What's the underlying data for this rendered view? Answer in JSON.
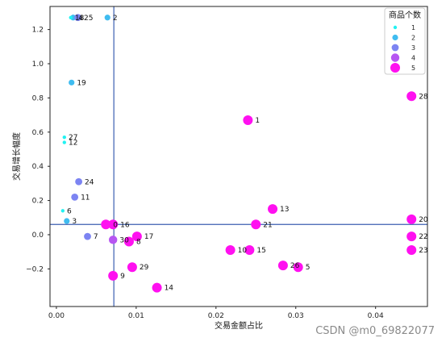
{
  "chart_data": {
    "type": "scatter",
    "title": "",
    "xlabel": "交易金额占比",
    "ylabel": "交易增长幅度",
    "xlim": [
      -0.0008,
      0.0465
    ],
    "ylim": [
      -0.42,
      1.335
    ],
    "xticks": [
      0.0,
      0.01,
      0.02,
      0.03,
      0.04
    ],
    "xtick_labels": [
      "0.00",
      "0.01",
      "0.02",
      "0.03",
      "0.04"
    ],
    "yticks": [
      -0.2,
      0.0,
      0.2,
      0.4,
      0.6,
      0.8,
      1.0,
      1.2
    ],
    "ytick_labels": [
      "−0.2",
      "0.0",
      "0.2",
      "0.4",
      "0.6",
      "0.8",
      "1.0",
      "1.2"
    ],
    "reference_lines": {
      "x": 0.0072,
      "y": 0.06
    },
    "legend": {
      "title": "商品个数",
      "placement": "top-right",
      "entries": [
        {
          "label": "1",
          "size": 1
        },
        {
          "label": "2",
          "size": 2
        },
        {
          "label": "3",
          "size": 3
        },
        {
          "label": "4",
          "size": 4
        },
        {
          "label": "5",
          "size": 5
        }
      ]
    },
    "points": [
      {
        "label": "1",
        "x": 0.024,
        "y": 0.67,
        "size": 5
      },
      {
        "label": "2",
        "x": 0.0064,
        "y": 1.27,
        "size": 2
      },
      {
        "label": "3",
        "x": 0.0013,
        "y": 0.08,
        "size": 2
      },
      {
        "label": "4",
        "x": 0.0021,
        "y": 1.27,
        "size": 2
      },
      {
        "label": "5",
        "x": 0.0303,
        "y": -0.19,
        "size": 5
      },
      {
        "label": "6",
        "x": 0.0008,
        "y": 0.14,
        "size": 1
      },
      {
        "label": "7",
        "x": 0.0039,
        "y": -0.01,
        "size": 3
      },
      {
        "label": "8",
        "x": 0.0091,
        "y": -0.04,
        "size": 5
      },
      {
        "label": "9",
        "x": 0.0071,
        "y": -0.24,
        "size": 5
      },
      {
        "label": "10",
        "x": 0.0218,
        "y": -0.09,
        "size": 5
      },
      {
        "label": "11",
        "x": 0.0023,
        "y": 0.22,
        "size": 3
      },
      {
        "label": "12",
        "x": 0.001,
        "y": 0.54,
        "size": 1
      },
      {
        "label": "13",
        "x": 0.0271,
        "y": 0.15,
        "size": 5
      },
      {
        "label": "14",
        "x": 0.0126,
        "y": -0.31,
        "size": 5
      },
      {
        "label": "15",
        "x": 0.0242,
        "y": -0.09,
        "size": 5
      },
      {
        "label": "16",
        "x": 0.0071,
        "y": 0.06,
        "size": 5
      },
      {
        "label": "17",
        "x": 0.0101,
        "y": -0.01,
        "size": 5
      },
      {
        "label": "18",
        "x": 0.0018,
        "y": 1.27,
        "size": 1
      },
      {
        "label": "19",
        "x": 0.0019,
        "y": 0.89,
        "size": 2
      },
      {
        "label": "20",
        "x": 0.0445,
        "y": 0.09,
        "size": 5
      },
      {
        "label": "21",
        "x": 0.025,
        "y": 0.06,
        "size": 5
      },
      {
        "label": "22",
        "x": 0.0445,
        "y": -0.01,
        "size": 5
      },
      {
        "label": "23",
        "x": 0.0445,
        "y": -0.09,
        "size": 5
      },
      {
        "label": "24",
        "x": 0.0028,
        "y": 0.31,
        "size": 3
      },
      {
        "label": "25",
        "x": 0.0027,
        "y": 1.27,
        "size": 3
      },
      {
        "label": "26",
        "x": 0.0284,
        "y": -0.18,
        "size": 5
      },
      {
        "label": "27",
        "x": 0.001,
        "y": 0.57,
        "size": 1
      },
      {
        "label": "28",
        "x": 0.0445,
        "y": 0.81,
        "size": 5
      },
      {
        "label": "29",
        "x": 0.0095,
        "y": -0.19,
        "size": 5
      },
      {
        "label": "30",
        "x": 0.0071,
        "y": -0.03,
        "size": 4
      },
      {
        "label": "0",
        "x": 0.0062,
        "y": 0.06,
        "size": 5
      }
    ]
  },
  "watermark": "CSDN @m0_69822077"
}
